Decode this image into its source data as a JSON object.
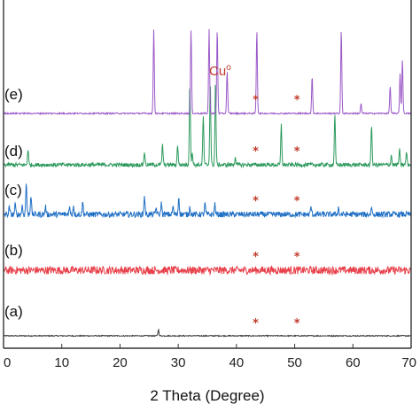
{
  "chart_data": {
    "type": "line",
    "title": "",
    "xlabel": "2 Theta (Degree)",
    "ylabel": "",
    "xlim": [
      0,
      70
    ],
    "x_ticks": [
      0,
      10,
      20,
      30,
      40,
      50,
      60,
      70
    ],
    "y_ticks_visible": false,
    "grid": false,
    "annotation": {
      "text": "Cu",
      "superscript": "o",
      "marker": "*",
      "marker_positions_deg": [
        43.3,
        50.4
      ],
      "color": "#c0392b"
    },
    "series": [
      {
        "name": "(a)",
        "color": "#3a3a3a",
        "noise": 0.06,
        "peaks": [
          [
            26.6,
            0.7
          ]
        ]
      },
      {
        "name": "(b)",
        "color": "#e8414b",
        "noise": 0.45,
        "peaks": []
      },
      {
        "name": "(c)",
        "color": "#1f6fc5",
        "noise": 0.32,
        "peaks": [
          [
            1.0,
            0.8
          ],
          [
            2.0,
            1.1
          ],
          [
            3.2,
            1.0
          ],
          [
            3.9,
            3.6
          ],
          [
            4.7,
            2.2
          ],
          [
            7.2,
            0.9
          ],
          [
            11.3,
            0.9
          ],
          [
            12.0,
            1.0
          ],
          [
            13.6,
            1.4
          ],
          [
            24.2,
            2.2
          ],
          [
            26.2,
            0.8
          ],
          [
            27.1,
            1.3
          ],
          [
            29.1,
            0.9
          ],
          [
            30.1,
            2.0
          ],
          [
            32.0,
            0.9
          ],
          [
            34.6,
            1.2
          ],
          [
            36.3,
            1.2
          ],
          [
            52.8,
            0.9
          ],
          [
            57.5,
            0.8
          ],
          [
            63.2,
            0.9
          ]
        ]
      },
      {
        "name": "(d)",
        "color": "#2e9a5e",
        "noise": 0.22,
        "peaks": [
          [
            4.2,
            1.8
          ],
          [
            24.2,
            1.5
          ],
          [
            27.3,
            2.3
          ],
          [
            29.9,
            2.3
          ],
          [
            32.0,
            9.5
          ],
          [
            32.4,
            1.5
          ],
          [
            34.3,
            5.6
          ],
          [
            35.5,
            9.5
          ],
          [
            36.4,
            9.5
          ],
          [
            39.8,
            0.9
          ],
          [
            47.7,
            4.5
          ],
          [
            56.9,
            5.6
          ],
          [
            63.2,
            4.6
          ],
          [
            66.6,
            1.1
          ],
          [
            68.0,
            1.7
          ],
          [
            69.2,
            1.5
          ]
        ]
      },
      {
        "name": "(e)",
        "color": "#9b59c8",
        "noise": 0.08,
        "peaks": [
          [
            25.8,
            9.5
          ],
          [
            32.2,
            9.5
          ],
          [
            35.3,
            9.5
          ],
          [
            36.7,
            9.5
          ],
          [
            38.4,
            4.8
          ],
          [
            43.5,
            9.5
          ],
          [
            53.0,
            4.2
          ],
          [
            58.0,
            9.5
          ],
          [
            61.4,
            1.1
          ],
          [
            66.4,
            3.1
          ],
          [
            68.1,
            4.5
          ],
          [
            68.5,
            6.1
          ]
        ]
      }
    ]
  }
}
